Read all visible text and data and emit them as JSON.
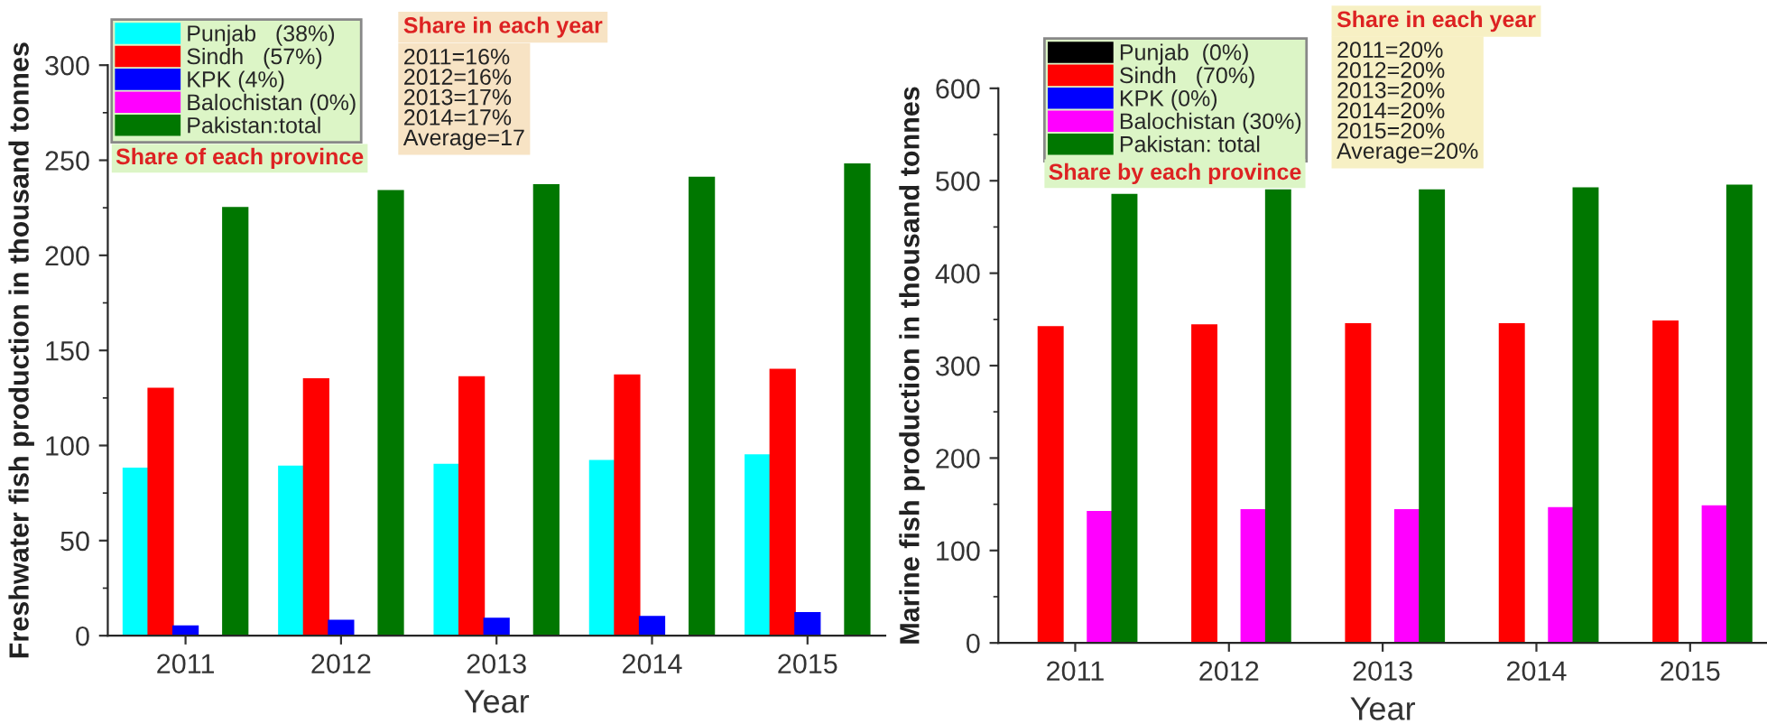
{
  "chart_data": [
    {
      "type": "bar",
      "xlabel": "Year",
      "ylabel": "Freshwater fish production in thousand tonnes",
      "categories": [
        "2011",
        "2012",
        "2013",
        "2014",
        "2015"
      ],
      "series": [
        {
          "name": "Punjab   (38%)",
          "color": "#00ffff",
          "values": [
            88,
            89,
            90,
            92,
            95
          ]
        },
        {
          "name": "Sindh   (57%)",
          "color": "#ff0000",
          "values": [
            130,
            135,
            136,
            137,
            140
          ]
        },
        {
          "name": "KPK (4%)",
          "color": "#0000ff",
          "values": [
            5,
            8,
            9,
            10,
            12
          ]
        },
        {
          "name": "Balochistan (0%)",
          "color": "#ff00ff",
          "values": [
            0,
            0,
            0,
            0,
            0
          ]
        },
        {
          "name": "Pakistan:total",
          "color": "#007700",
          "values": [
            225,
            234,
            237,
            241,
            248
          ]
        }
      ],
      "ylim": [
        0,
        300
      ],
      "yticks": [
        0,
        50,
        100,
        150,
        200,
        250,
        300
      ],
      "grid": false,
      "legend": "top left",
      "annotations": [
        "Share of each province",
        "Share in each year",
        "2011=16%\n2012=16%\n2013=17%\n2014=17%\nAverage=17"
      ]
    },
    {
      "type": "bar",
      "xlabel": "Year",
      "ylabel": "Marine fish production in thousand tonnes",
      "categories": [
        "2011",
        "2012",
        "2013",
        "2014",
        "2015"
      ],
      "series": [
        {
          "name": "Punjab  (0%)",
          "color": "#000000",
          "values": [
            0,
            0,
            0,
            0,
            0
          ]
        },
        {
          "name": "Sindh   (70%)",
          "color": "#ff0000",
          "values": [
            342,
            344,
            345,
            345,
            348
          ]
        },
        {
          "name": "KPK (0%)",
          "color": "#0000ff",
          "values": [
            0,
            0,
            0,
            0,
            0
          ]
        },
        {
          "name": "Balochistan (30%)",
          "color": "#ff00ff",
          "values": [
            142,
            144,
            144,
            146,
            148
          ]
        },
        {
          "name": "Pakistan: total",
          "color": "#007700",
          "values": [
            485,
            490,
            490,
            492,
            495
          ]
        }
      ],
      "ylim": [
        0,
        600
      ],
      "yticks": [
        0,
        100,
        200,
        300,
        400,
        500,
        600
      ],
      "grid": false,
      "legend": "top left",
      "annotations": [
        "Share by each province",
        "Share in each year",
        "2011=20%\n2012=20%\n2013=20%\n2014=20%\n2015=20%\nAverage=20%"
      ]
    }
  ]
}
